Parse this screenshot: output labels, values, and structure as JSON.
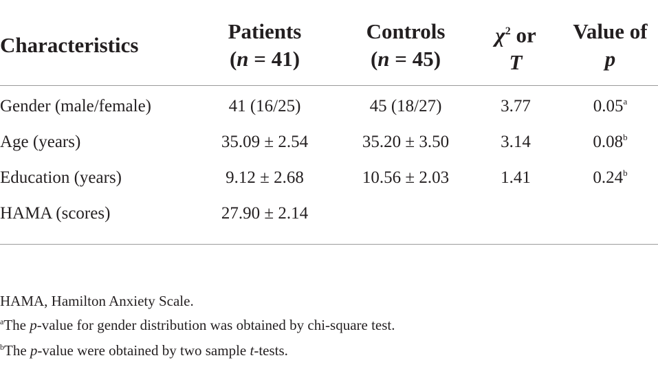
{
  "table": {
    "headers": {
      "characteristics": "Characteristics",
      "patients_line1": "Patients",
      "patients_n_var": "n",
      "patients_n_val": " = 41)",
      "controls_line1": "Controls",
      "controls_n_var": "n",
      "controls_n_val": " = 45)",
      "stat_chi": "χ",
      "stat_sup": "2",
      "stat_or": " or",
      "stat_t": "T",
      "pvalue_line1": "Value of",
      "pvalue_line2": "p"
    },
    "rows": [
      {
        "label": "Gender (male/female)",
        "patients": "41 (16/25)",
        "controls": "45 (18/27)",
        "stat": "3.77",
        "p": "0.05",
        "p_note": "a"
      },
      {
        "label": "Age (years)",
        "patients": "35.09 ± 2.54",
        "controls": "35.20 ± 3.50",
        "stat": "3.14",
        "p": "0.08",
        "p_note": "b"
      },
      {
        "label": "Education (years)",
        "patients": "9.12 ± 2.68",
        "controls": "10.56 ± 2.03",
        "stat": "1.41",
        "p": "0.24",
        "p_note": "b"
      },
      {
        "label": "HAMA (scores)",
        "patients": "27.90 ± 2.14",
        "controls": "",
        "stat": "",
        "p": "",
        "p_note": ""
      }
    ]
  },
  "footnotes": {
    "abbrev": "HAMA, Hamilton Anxiety Scale.",
    "a_mark": "a",
    "a_pre": "The ",
    "a_var": "p",
    "a_post": "-value for gender distribution was obtained by chi-square test.",
    "b_mark": "b",
    "b_pre": "The ",
    "b_var": "p",
    "b_mid": "-value were obtained by two sample ",
    "b_var2": "t",
    "b_post": "-tests."
  }
}
